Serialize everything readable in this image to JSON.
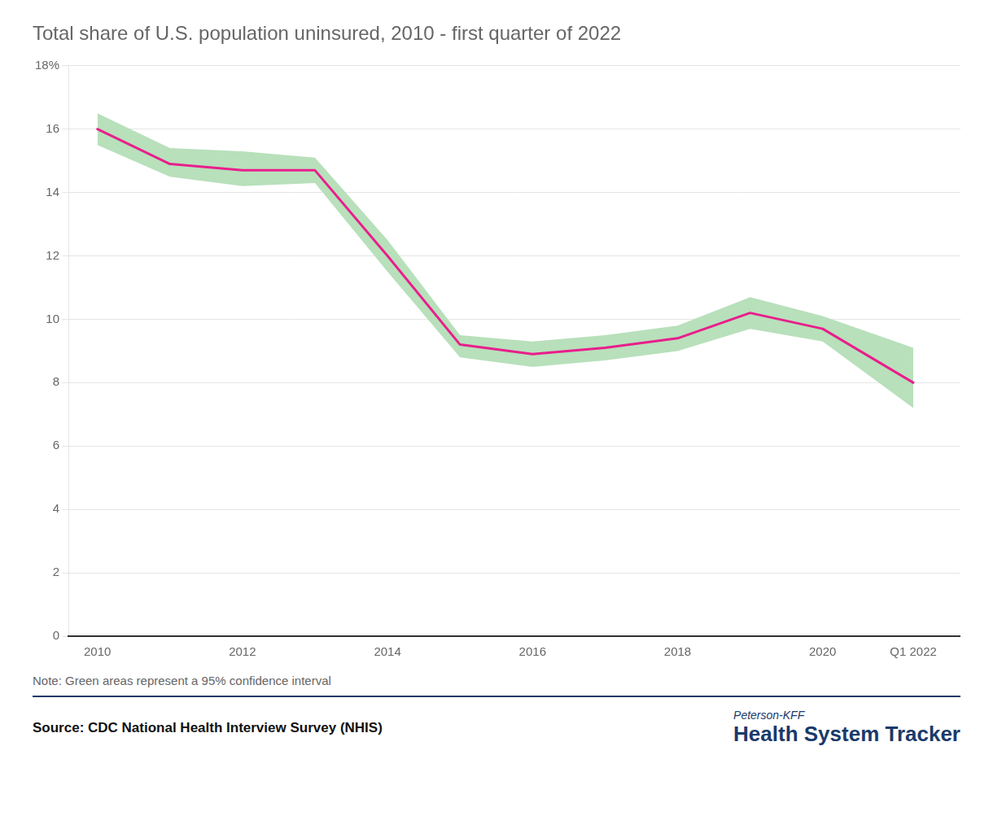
{
  "chart_data": {
    "type": "line",
    "title": "Total share of U.S. population uninsured, 2010 - first quarter of 2022",
    "annotations": [
      "Note: Green areas represent a 95% confidence interval",
      "Source: CDC National Health Interview Survey (NHIS)",
      "Peterson-KFF",
      "Health System Tracker"
    ],
    "x": [
      2010,
      2011,
      2012,
      2013,
      2014,
      2015,
      2016,
      2017,
      2018,
      2019,
      2020,
      2021.25
    ],
    "series": [
      {
        "type": "line",
        "color": "#e91e8c",
        "values": [
          16.0,
          14.9,
          14.7,
          14.7,
          12.0,
          9.2,
          8.9,
          9.1,
          9.4,
          10.2,
          9.7,
          8.0
        ]
      },
      {
        "type": "band",
        "color": "#b8e0bb",
        "lower": [
          15.5,
          14.5,
          14.2,
          14.3,
          11.5,
          8.8,
          8.5,
          8.7,
          9.0,
          9.7,
          9.3,
          7.2
        ],
        "upper": [
          16.5,
          15.4,
          15.3,
          15.1,
          12.5,
          9.5,
          9.3,
          9.5,
          9.8,
          10.7,
          10.1,
          9.1
        ]
      }
    ],
    "xlim": [
      2009.6,
      2021.9
    ],
    "xticks": [
      2010,
      2012,
      2014,
      2016,
      2018,
      2020,
      {
        "value": 2021.25,
        "label": "Q1 2022"
      }
    ],
    "ylim": [
      0,
      18
    ],
    "yticks": [
      0,
      2,
      4,
      6,
      8,
      10,
      12,
      14,
      16,
      {
        "value": 18,
        "label": "18%"
      }
    ],
    "grid": true
  }
}
